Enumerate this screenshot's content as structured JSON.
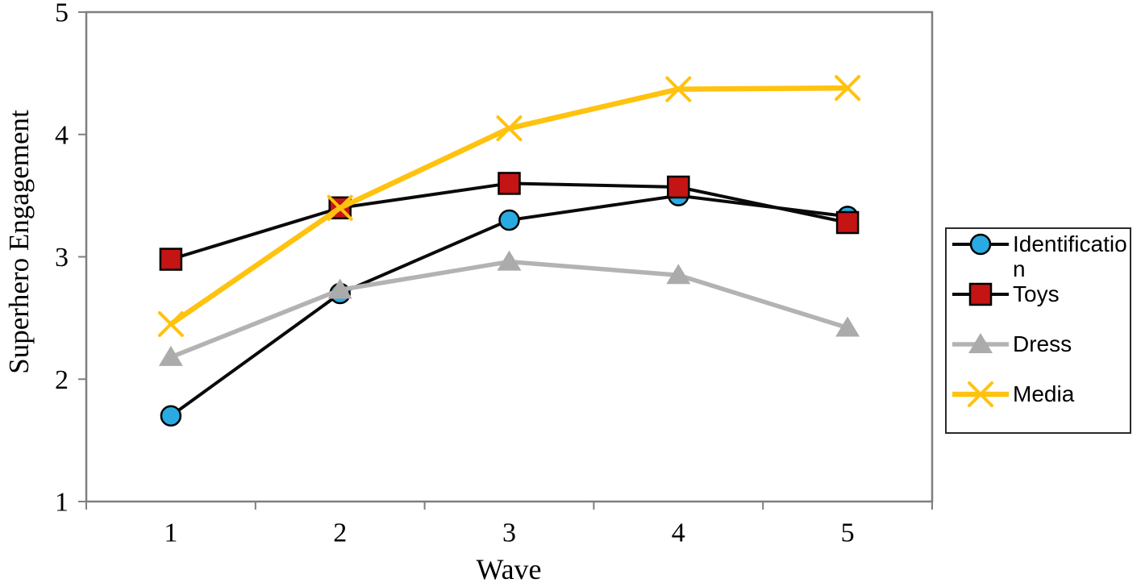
{
  "chart_data": {
    "type": "line",
    "title": "",
    "xlabel": "Wave",
    "ylabel": "Superhero Engagement",
    "categories": [
      "1",
      "2",
      "3",
      "4",
      "5"
    ],
    "yticks": [
      1,
      2,
      3,
      4,
      5
    ],
    "ylim": [
      1,
      5
    ],
    "grid": false,
    "legend_position": "right-outside",
    "axis_color": "#7F7F7F",
    "plot_bg": "#FFFFFF",
    "series": [
      {
        "name": "Identification",
        "marker": "circle",
        "marker_color": "#29ABE2",
        "line_color": "#0A0A0A",
        "values": [
          1.7,
          2.7,
          3.3,
          3.5,
          3.33
        ]
      },
      {
        "name": "Toys",
        "marker": "square",
        "marker_color": "#C51414",
        "line_color": "#0A0A0A",
        "values": [
          2.98,
          3.4,
          3.6,
          3.57,
          3.28
        ]
      },
      {
        "name": "Dress",
        "marker": "triangle",
        "marker_color": "#ABABAB",
        "line_color": "#B3B3B3",
        "values": [
          2.18,
          2.73,
          2.96,
          2.85,
          2.42
        ]
      },
      {
        "name": "Media",
        "marker": "x",
        "marker_color": "#FFC20E",
        "line_color": "#FFC20E",
        "values": [
          2.45,
          3.4,
          4.05,
          4.37,
          4.38
        ]
      }
    ]
  }
}
